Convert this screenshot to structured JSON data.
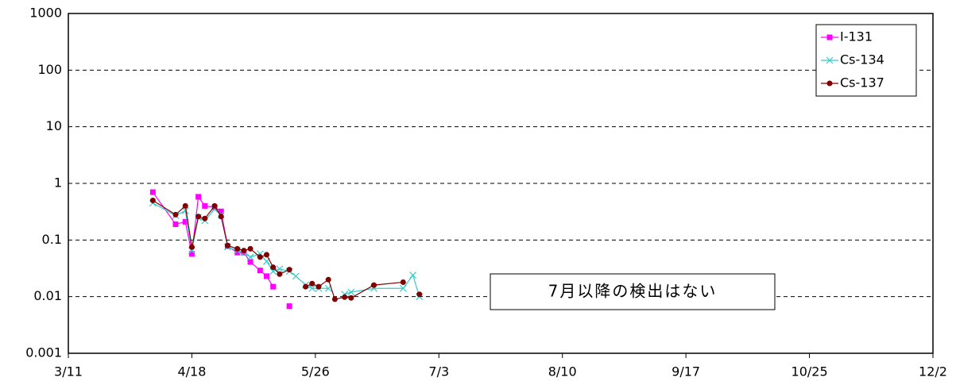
{
  "chart_data": {
    "type": "line",
    "x": [
      "4/6",
      "4/13",
      "4/16",
      "4/18",
      "4/20",
      "4/22",
      "4/25",
      "4/27",
      "4/29",
      "5/2",
      "5/4",
      "5/6",
      "5/9",
      "5/11",
      "5/13",
      "5/15",
      "5/18",
      "5/20",
      "5/23",
      "5/25",
      "5/27",
      "5/30",
      "6/1",
      "6/4",
      "6/6",
      "6/13",
      "6/22",
      "6/25",
      "6/27"
    ],
    "series": [
      {
        "name": "I-131",
        "color": "#ff00ff",
        "marker": "square",
        "values": [
          0.7,
          0.19,
          0.21,
          0.057,
          0.58,
          0.4,
          0.38,
          0.32,
          0.078,
          0.06,
          0.06,
          0.041,
          0.029,
          0.023,
          0.015,
          null,
          0.0068,
          null,
          null,
          null,
          null,
          null,
          null,
          null,
          null,
          null,
          null,
          null,
          null
        ]
      },
      {
        "name": "Cs-134",
        "color": "#33cccc",
        "marker": "x",
        "values": [
          0.45,
          0.27,
          0.33,
          0.065,
          0.25,
          0.22,
          0.35,
          0.28,
          0.075,
          0.065,
          0.06,
          0.05,
          0.057,
          0.042,
          0.028,
          0.031,
          0.028,
          0.023,
          0.016,
          0.014,
          0.014,
          0.014,
          null,
          0.011,
          0.012,
          0.014,
          0.014,
          0.024,
          0.01
        ]
      },
      {
        "name": "Cs-137",
        "color": "#800000",
        "marker": "circle",
        "values": [
          0.5,
          0.28,
          0.4,
          0.075,
          0.26,
          0.24,
          0.4,
          0.26,
          0.08,
          0.07,
          0.065,
          0.07,
          0.05,
          0.055,
          0.033,
          0.025,
          0.03,
          null,
          0.015,
          0.017,
          0.015,
          0.02,
          0.009,
          0.0098,
          0.0095,
          0.016,
          0.018,
          null,
          0.011
        ]
      }
    ],
    "xlim": [
      "3/11",
      "12/2"
    ],
    "xticks": [
      "3/11",
      "4/18",
      "5/26",
      "7/3",
      "8/10",
      "9/17",
      "10/25",
      "12/2"
    ],
    "ylim": [
      0.001,
      1000
    ],
    "yticks": [
      0.001,
      0.01,
      0.1,
      1,
      10,
      100,
      1000
    ],
    "log_scale": true,
    "grid": true,
    "legend": "upper right",
    "annotation": "7月以降の検出はない"
  }
}
